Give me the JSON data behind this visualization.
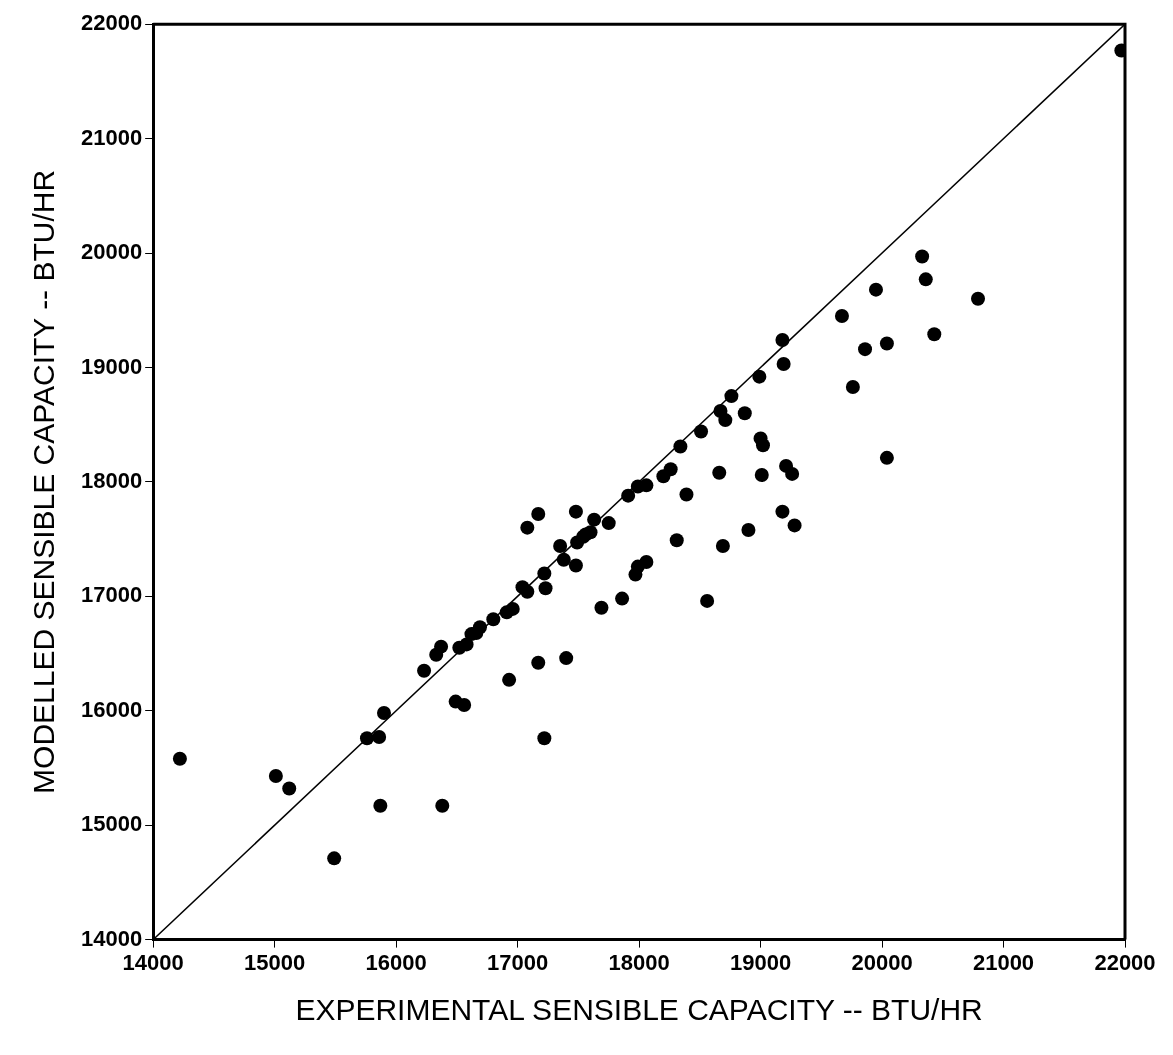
{
  "chart_data": {
    "type": "scatter",
    "xlabel": "EXPERIMENTAL SENSIBLE CAPACITY -- BTU/HR",
    "ylabel": "MODELLED SENSIBLE CAPACITY -- BTU/HR",
    "xlim": [
      14000,
      22000
    ],
    "xticks": [
      14000,
      15000,
      16000,
      17000,
      18000,
      19000,
      20000,
      21000,
      22000
    ],
    "ylim": [
      14000,
      22000
    ],
    "yticks": [
      14000,
      15000,
      16000,
      17000,
      18000,
      19000,
      20000,
      21000,
      22000
    ],
    "grid": false,
    "legend": false,
    "marker": "circle",
    "series": [
      {
        "color": "#000000",
        "x": [
          14220,
          15010,
          15120,
          15490,
          15870,
          16380,
          15760,
          15860,
          15900,
          16230,
          16490,
          16560,
          16930,
          16330,
          16370,
          16520,
          16580,
          16620,
          16690,
          16660,
          16800,
          16910,
          16960,
          17040,
          17080,
          17170,
          17220,
          17220,
          17230,
          17080,
          17170,
          17350,
          17380,
          17400,
          17480,
          17480,
          17490,
          17540,
          17560,
          17600,
          17630,
          17690,
          17750,
          17860,
          17910,
          17970,
          17990,
          18060,
          17990,
          18060,
          18200,
          18260,
          18340,
          18390,
          18310,
          18510,
          18560,
          18660,
          18690,
          18670,
          18710,
          18760,
          18870,
          18900,
          19000,
          19020,
          19010,
          19180,
          19210,
          19260,
          19280,
          19670,
          19860,
          20040,
          19760,
          20040,
          19180,
          19190,
          18990,
          20330,
          20360,
          20790,
          20430,
          19950,
          21970
        ],
        "values": [
          15580,
          15430,
          15320,
          14710,
          15170,
          15170,
          15760,
          15770,
          15980,
          16350,
          16080,
          16050,
          16270,
          16490,
          16560,
          16550,
          16580,
          16670,
          16730,
          16680,
          16800,
          16860,
          16890,
          17080,
          17040,
          16420,
          15760,
          17200,
          17070,
          17600,
          17720,
          17440,
          17320,
          16460,
          17270,
          17740,
          17470,
          17520,
          17540,
          17560,
          17670,
          16900,
          17640,
          16980,
          17880,
          17190,
          17260,
          17300,
          17960,
          17970,
          18050,
          18110,
          18310,
          17890,
          17490,
          18440,
          16960,
          18080,
          17440,
          18620,
          18540,
          18750,
          18600,
          17580,
          18380,
          18320,
          18060,
          17740,
          18140,
          18070,
          17620,
          19450,
          19160,
          19210,
          18830,
          18210,
          19240,
          19030,
          18920,
          19970,
          19770,
          19600,
          19290,
          19680,
          21770
        ]
      },
      {
        "type": "line",
        "color": "#000000",
        "line_style": "solid",
        "marker": "none",
        "x": [
          14000,
          22000
        ],
        "values": [
          14000,
          22000
        ]
      }
    ]
  }
}
